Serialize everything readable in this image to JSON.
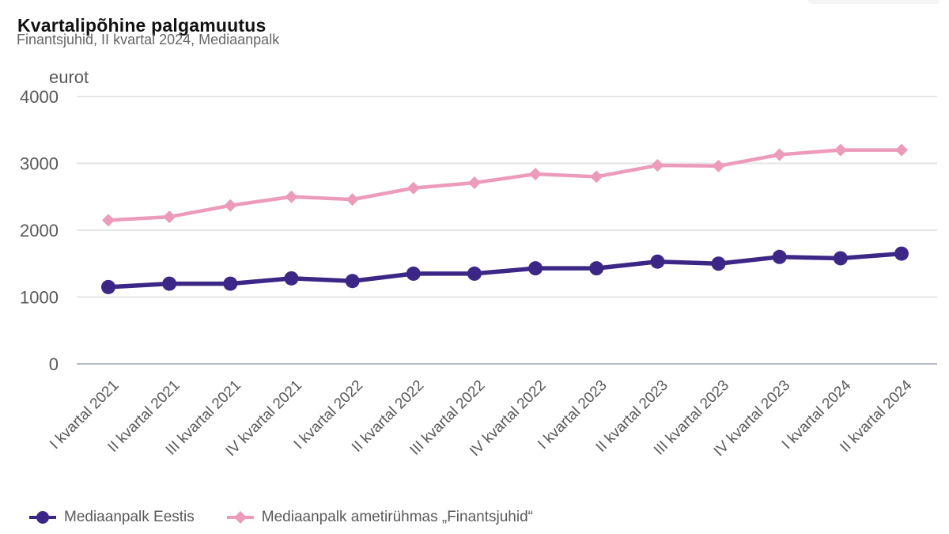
{
  "header": {
    "title": "Kvartalipõhine palgamuutus",
    "subtitle": "Finantsjuhid, II kvartal 2024, Mediaanpalk"
  },
  "top_right_partial_element": {
    "color": "#f5f5f5"
  },
  "colors": {
    "grid_line": "#e6e6e6",
    "zero_axis_line": "#b6bac4",
    "axis_text": "#595959",
    "title_text": "#111111",
    "subtitle_text": "#666666",
    "series_eesti": "#3c2786",
    "series_finantsjuhid": "#ec9bba"
  },
  "chart_data": {
    "type": "line",
    "title": "Kvartalipõhine palgamuutus",
    "subtitle": "Finantsjuhid, II kvartal 2024, Mediaanpalk",
    "ylabel": "eurot",
    "xlabel": "",
    "ylim": [
      0,
      4000
    ],
    "yticks": [
      0,
      1000,
      2000,
      3000,
      4000
    ],
    "grid": true,
    "legend_position": "bottom-left",
    "x_label_rotation_deg": -45,
    "categories": [
      "I kvartal 2021",
      "II kvartal 2021",
      "III kvartal 2021",
      "IV kvartal 2021",
      "I kvartal 2022",
      "II kvartal 2022",
      "III kvartal 2022",
      "IV kvartal 2022",
      "I kvartal 2023",
      "II kvartal 2023",
      "III kvartal 2023",
      "IV kvartal 2023",
      "I kvartal 2024",
      "II kvartal 2024"
    ],
    "series": [
      {
        "name": "Mediaanpalk Eestis",
        "color": "#3c2786",
        "marker": "circle",
        "values": [
          1150,
          1200,
          1200,
          1280,
          1240,
          1350,
          1350,
          1430,
          1430,
          1530,
          1500,
          1600,
          1580,
          1650
        ]
      },
      {
        "name": "Mediaanpalk ametirühmas „Finantsjuhid“",
        "color": "#ec9bba",
        "marker": "diamond",
        "values": [
          2150,
          2200,
          2370,
          2500,
          2460,
          2630,
          2710,
          2840,
          2800,
          2970,
          2960,
          3130,
          3200,
          3200
        ]
      }
    ]
  }
}
